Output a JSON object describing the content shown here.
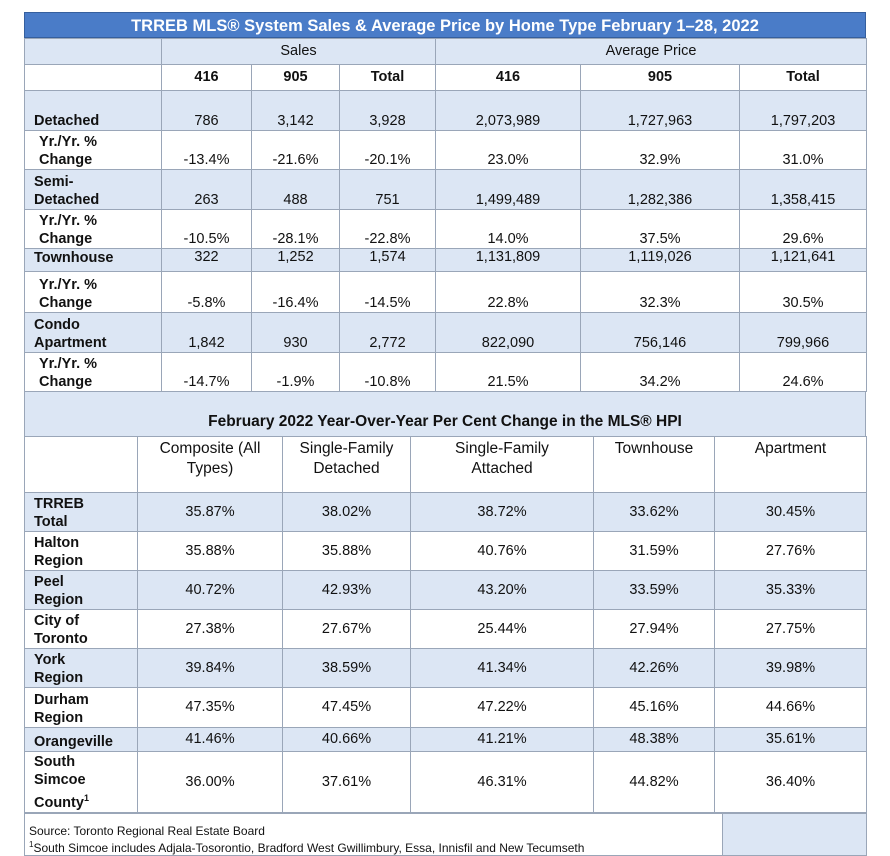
{
  "table1": {
    "title": "TRREB MLS® System Sales & Average Price by Home Type February 1–28, 2022",
    "groups": {
      "sales": "Sales",
      "avg_price": "Average Price"
    },
    "columns": [
      "416",
      "905",
      "Total",
      "416",
      "905",
      "Total"
    ],
    "rows": [
      {
        "label": [
          "Detached"
        ],
        "cells": [
          "786",
          "3,142",
          "3,928",
          "2,073,989",
          "1,727,963",
          "1,797,203"
        ]
      },
      {
        "label": [
          "Yr./Yr. %",
          "Change"
        ],
        "cells": [
          "-13.4%",
          "-21.6%",
          "-20.1%",
          "23.0%",
          "32.9%",
          "31.0%"
        ]
      },
      {
        "label": [
          "Semi-",
          "Detached"
        ],
        "cells": [
          "263",
          "488",
          "751",
          "1,499,489",
          "1,282,386",
          "1,358,415"
        ]
      },
      {
        "label": [
          "Yr./Yr. %",
          "Change"
        ],
        "cells": [
          "-10.5%",
          "-28.1%",
          "-22.8%",
          "14.0%",
          "37.5%",
          "29.6%"
        ]
      },
      {
        "label": [
          "Townhouse"
        ],
        "cells": [
          "322",
          "1,252",
          "1,574",
          "1,131,809",
          "1,119,026",
          "1,121,641"
        ]
      },
      {
        "label": [
          "Yr./Yr. %",
          "Change"
        ],
        "cells": [
          "-5.8%",
          "-16.4%",
          "-14.5%",
          "22.8%",
          "32.3%",
          "30.5%"
        ]
      },
      {
        "label": [
          "Condo",
          "Apartment"
        ],
        "cells": [
          "1,842",
          "930",
          "2,772",
          "822,090",
          "756,146",
          "799,966"
        ]
      },
      {
        "label": [
          "Yr./Yr. %",
          "Change"
        ],
        "cells": [
          "-14.7%",
          "-1.9%",
          "-10.8%",
          "21.5%",
          "34.2%",
          "24.6%"
        ]
      }
    ]
  },
  "table2": {
    "title": "February 2022 Year-Over-Year Per Cent Change in the MLS® HPI",
    "columns": [
      [
        "Composite (All",
        "Types)"
      ],
      [
        "Single-Family",
        "Detached"
      ],
      [
        "Single-Family",
        "Attached"
      ],
      [
        "Townhouse",
        ""
      ],
      [
        "Apartment",
        ""
      ]
    ],
    "rows": [
      {
        "label": [
          "TRREB",
          "Total"
        ],
        "cells": [
          "35.87%",
          "38.02%",
          "38.72%",
          "33.62%",
          "30.45%"
        ]
      },
      {
        "label": [
          "Halton",
          "Region"
        ],
        "cells": [
          "35.88%",
          "35.88%",
          "40.76%",
          "31.59%",
          "27.76%"
        ]
      },
      {
        "label": [
          "Peel",
          "Region"
        ],
        "cells": [
          "40.72%",
          "42.93%",
          "43.20%",
          "33.59%",
          "35.33%"
        ]
      },
      {
        "label": [
          "City of",
          "Toronto"
        ],
        "cells": [
          "27.38%",
          "27.67%",
          "25.44%",
          "27.94%",
          "27.75%"
        ]
      },
      {
        "label": [
          "York",
          "Region"
        ],
        "cells": [
          "39.84%",
          "38.59%",
          "41.34%",
          "42.26%",
          "39.98%"
        ]
      },
      {
        "label": [
          "Durham",
          "Region"
        ],
        "cells": [
          "47.35%",
          "47.45%",
          "47.22%",
          "45.16%",
          "44.66%"
        ]
      },
      {
        "label": [
          "Orangeville"
        ],
        "cells": [
          "41.46%",
          "40.66%",
          "41.21%",
          "48.38%",
          "35.61%"
        ]
      },
      {
        "label": [
          "South",
          "Simcoe",
          "County"
        ],
        "sup": "1",
        "cells": [
          "36.00%",
          "37.61%",
          "46.31%",
          "44.82%",
          "36.40%"
        ]
      }
    ],
    "footnotes": {
      "source": "Source: Toronto Regional Real Estate Board",
      "note_marker": "1",
      "note": "South Simcoe includes Adjala-Tosorontio, Bradford West Gwillimbury, Essa, Innisfil and New Tecumseth"
    }
  },
  "colors": {
    "title_bar": "#4a7cc8",
    "band": "#dce6f4",
    "border": "#9aa6b8"
  }
}
